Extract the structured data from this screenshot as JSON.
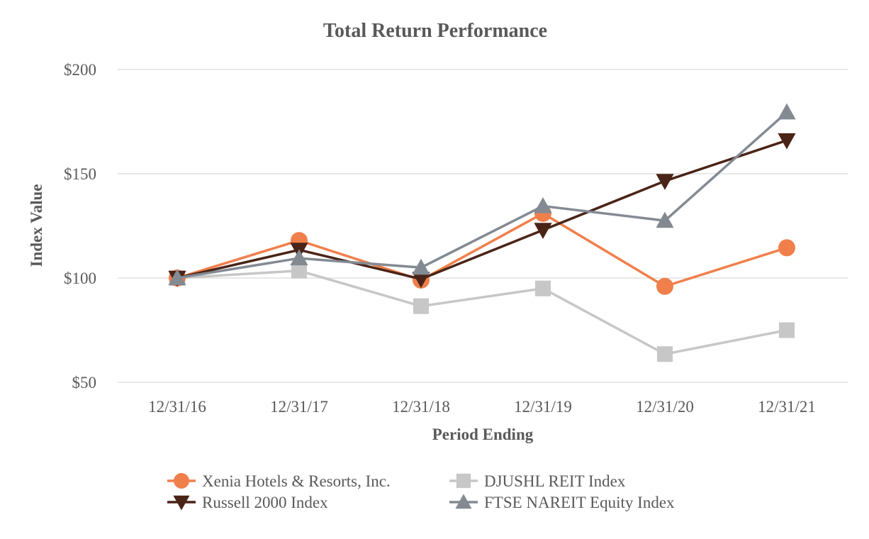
{
  "chart_data": {
    "type": "line",
    "title": "Total Return Performance",
    "xlabel": "Period Ending",
    "ylabel": "Index Value",
    "categories": [
      "12/31/16",
      "12/31/17",
      "12/31/18",
      "12/31/19",
      "12/31/20",
      "12/31/21"
    ],
    "ylim": [
      50,
      200
    ],
    "yticks": [
      50,
      100,
      150,
      200
    ],
    "ytick_labels": [
      "$50",
      "$100",
      "$150",
      "$200"
    ],
    "grid": true,
    "legend_position": "bottom",
    "series": [
      {
        "name": "Xenia Hotels & Resorts, Inc.",
        "color": "#f07f4b",
        "marker": "circle",
        "values": [
          100,
          118,
          99,
          131,
          96,
          114.5
        ]
      },
      {
        "name": "Russell 2000 Index",
        "color": "#4a2417",
        "marker": "triangle-down",
        "values": [
          100,
          113.5,
          99.5,
          123,
          146.5,
          166
        ]
      },
      {
        "name": "DJUSHL REIT Index",
        "color": "#c7c7c7",
        "marker": "square",
        "values": [
          100,
          103.5,
          86.5,
          95,
          63.5,
          75
        ]
      },
      {
        "name": "FTSE NAREIT Equity Index",
        "color": "#838a92",
        "marker": "triangle-up",
        "values": [
          100,
          109.5,
          105,
          134.5,
          127.5,
          179.5
        ]
      }
    ],
    "draw_order": [
      2,
      0,
      1,
      3
    ]
  }
}
